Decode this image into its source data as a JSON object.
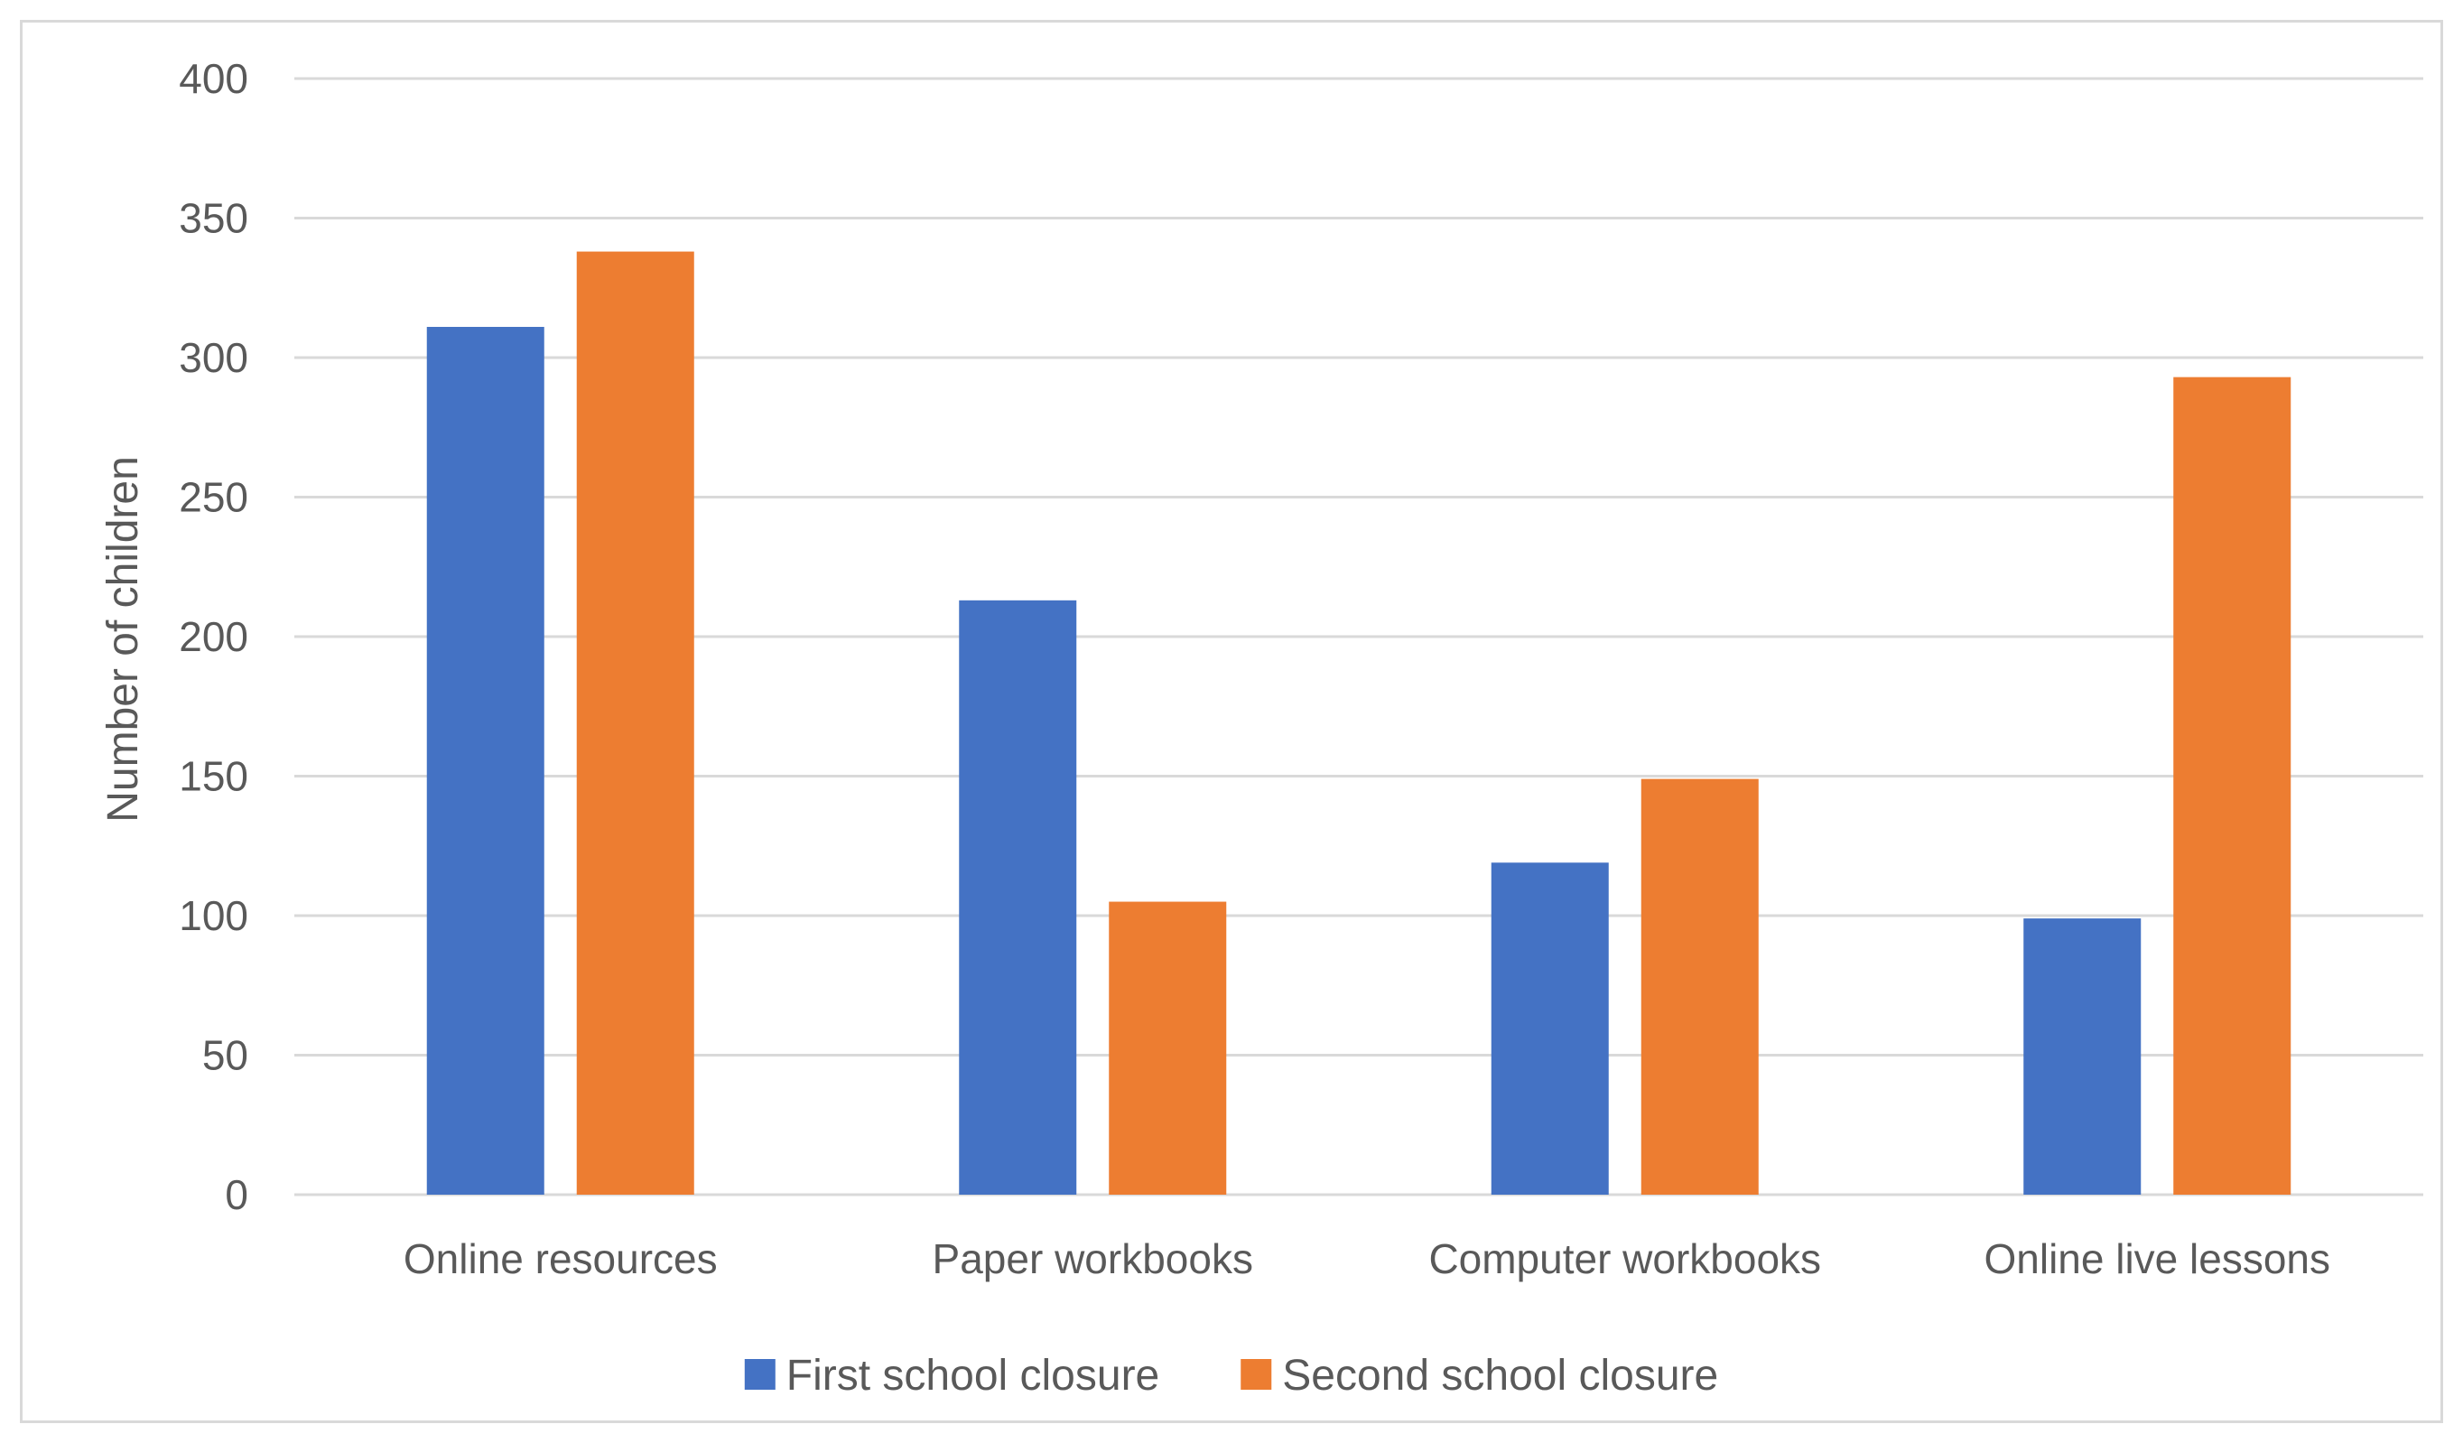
{
  "chart_data": {
    "type": "bar",
    "title": "",
    "xlabel": "",
    "ylabel": "Number of children",
    "ylim": [
      0,
      400
    ],
    "yticks": [
      0,
      50,
      100,
      150,
      200,
      250,
      300,
      350,
      400
    ],
    "grid": true,
    "legend_position": "bottom",
    "categories": [
      "Online resources",
      "Paper workbooks",
      "Computer workbooks",
      "Online live lessons"
    ],
    "series": [
      {
        "name": "First school closure",
        "color": "#4472c4",
        "values": [
          311,
          213,
          119,
          99
        ]
      },
      {
        "name": "Second school closure",
        "color": "#ed7d31",
        "values": [
          338,
          105,
          149,
          293
        ]
      }
    ]
  }
}
